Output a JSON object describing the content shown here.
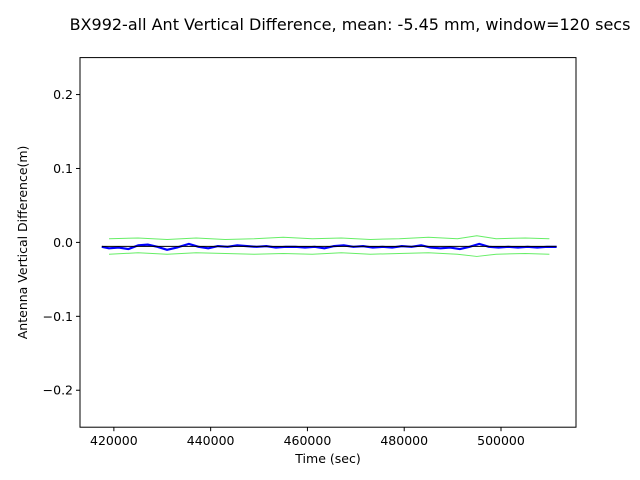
{
  "chart_data": {
    "type": "line",
    "title": "BX992-all Ant Vertical Difference, mean: -5.45 mm, window=120 secs",
    "xlabel": "Time (sec)",
    "ylabel": "Antenna Vertical Difference(m)",
    "xlim": [
      413000,
      515500
    ],
    "ylim": [
      -0.25,
      0.25
    ],
    "xticks": [
      420000,
      440000,
      460000,
      480000,
      500000
    ],
    "xtick_labels": [
      "420000",
      "440000",
      "460000",
      "480000",
      "500000"
    ],
    "yticks": [
      -0.2,
      -0.1,
      0.0,
      0.1,
      0.2
    ],
    "ytick_labels": [
      "−0.2",
      "−0.1",
      "0.0",
      "0.1",
      "0.2"
    ],
    "grid": false,
    "colors": {
      "raw": "#0000ff",
      "mean": "#000000",
      "envelope": "#66ee66"
    },
    "series": [
      {
        "role": "raw",
        "x": [
          417500,
          419000,
          421000,
          423000,
          425000,
          427000,
          429000,
          431000,
          433000,
          435500,
          437500,
          439500,
          441500,
          443500,
          445500,
          447500,
          449500,
          451500,
          453500,
          455500,
          457500,
          459500,
          461500,
          463500,
          465500,
          467500,
          469500,
          471500,
          473500,
          475500,
          477500,
          479500,
          481500,
          483500,
          485500,
          487500,
          489500,
          491500,
          493500,
          495500,
          497500,
          499500,
          501500,
          503500,
          505500,
          507500,
          509500,
          511500
        ],
        "y": [
          -0.006,
          -0.008,
          -0.007,
          -0.009,
          -0.004,
          -0.003,
          -0.006,
          -0.01,
          -0.007,
          -0.002,
          -0.006,
          -0.008,
          -0.005,
          -0.006,
          -0.004,
          -0.005,
          -0.006,
          -0.005,
          -0.007,
          -0.006,
          -0.006,
          -0.007,
          -0.006,
          -0.008,
          -0.005,
          -0.004,
          -0.006,
          -0.005,
          -0.007,
          -0.006,
          -0.007,
          -0.005,
          -0.006,
          -0.004,
          -0.007,
          -0.008,
          -0.007,
          -0.009,
          -0.006,
          -0.002,
          -0.006,
          -0.007,
          -0.006,
          -0.007,
          -0.006,
          -0.007,
          -0.006,
          -0.006
        ]
      },
      {
        "role": "mean",
        "x": [
          417500,
          511500
        ],
        "y": [
          -0.00545,
          -0.00545
        ]
      },
      {
        "role": "envelope-upper",
        "x": [
          419000,
          425000,
          431000,
          437000,
          443000,
          449000,
          455000,
          461000,
          467000,
          473000,
          479000,
          485000,
          491000,
          495000,
          499000,
          505000,
          510000
        ],
        "y": [
          0.005,
          0.006,
          0.004,
          0.006,
          0.004,
          0.005,
          0.007,
          0.005,
          0.006,
          0.004,
          0.005,
          0.007,
          0.005,
          0.009,
          0.005,
          0.006,
          0.005
        ]
      },
      {
        "role": "envelope-lower",
        "x": [
          419000,
          425000,
          431000,
          437000,
          443000,
          449000,
          455000,
          461000,
          467000,
          473000,
          479000,
          485000,
          491000,
          495000,
          499000,
          505000,
          510000
        ],
        "y": [
          -0.016,
          -0.014,
          -0.016,
          -0.014,
          -0.015,
          -0.016,
          -0.015,
          -0.016,
          -0.014,
          -0.016,
          -0.015,
          -0.014,
          -0.016,
          -0.019,
          -0.016,
          -0.015,
          -0.016
        ]
      }
    ]
  }
}
